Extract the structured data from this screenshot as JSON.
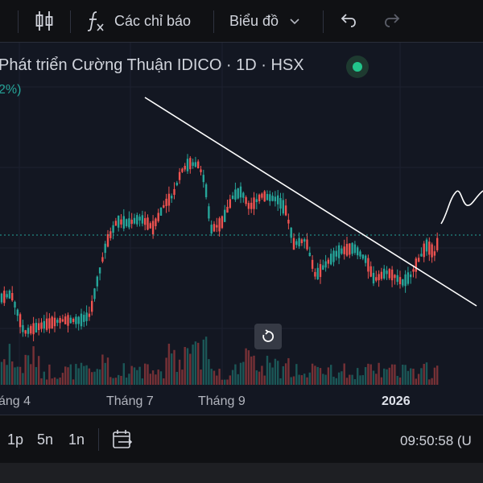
{
  "toolbar": {
    "indicators_label": "Các chỉ báo",
    "chart_type_label": "Biểu đồ"
  },
  "legend": {
    "title": "Phát triển Cường Thuận IDICO · 1D · HSX",
    "change": "2%)"
  },
  "x_axis": {
    "labels": [
      "áng 4",
      "Tháng 7",
      "Tháng 9",
      "2026"
    ]
  },
  "bottom": {
    "ranges": [
      "1p",
      "5n",
      "1n"
    ],
    "clock": "09:50:58 (U"
  },
  "colors": {
    "up": "#26a69a",
    "down": "#ef5350",
    "status_live": "#22c58b"
  },
  "icons": [
    "candlestick-icon",
    "function-icon",
    "chevron-down-icon",
    "undo-icon",
    "redo-icon",
    "reset-chart-icon",
    "calendar-range-icon"
  ]
}
